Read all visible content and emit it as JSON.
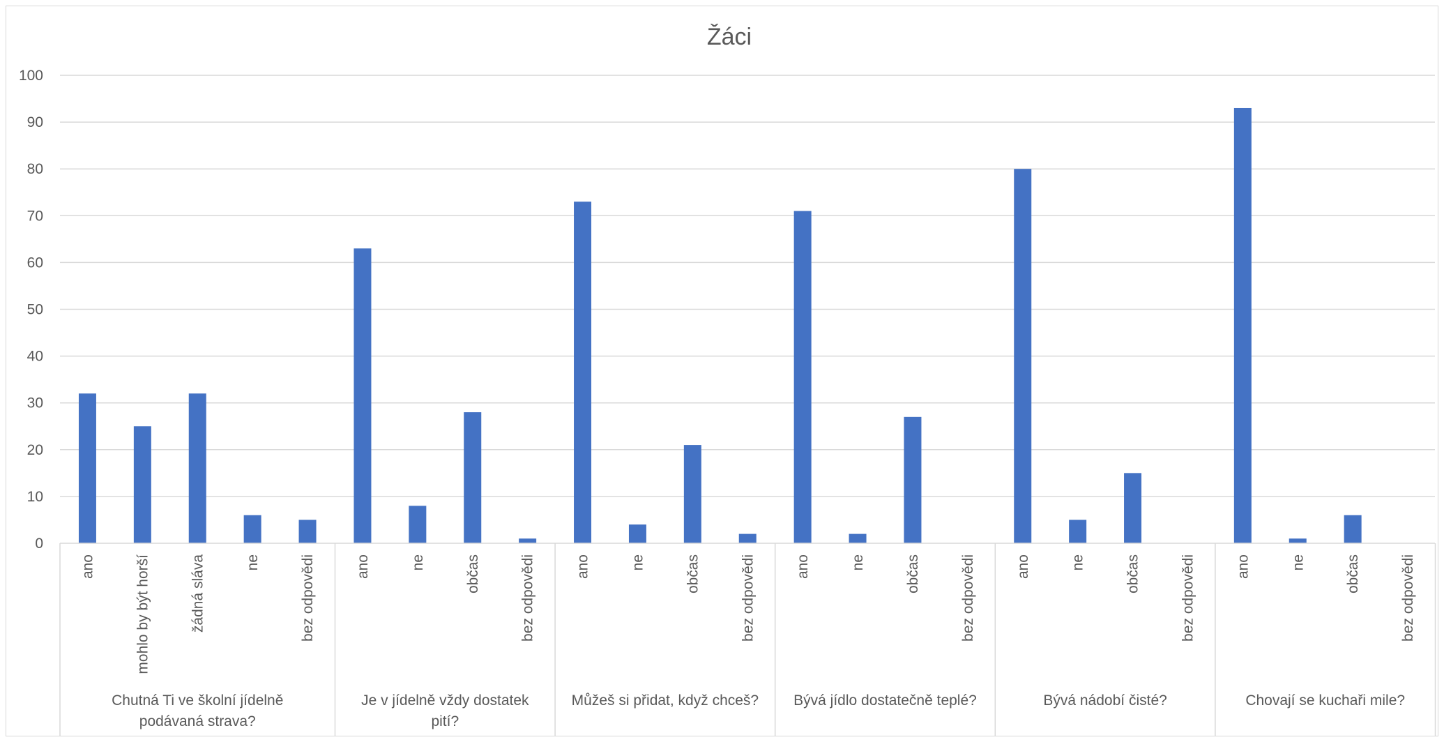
{
  "chart_data": {
    "type": "bar",
    "title": "Žáci",
    "ylim": [
      0,
      100
    ],
    "yticks": [
      0,
      10,
      20,
      30,
      40,
      50,
      60,
      70,
      80,
      90,
      100
    ],
    "grid": true,
    "bar_color": "#4472c4",
    "groups": [
      {
        "label": "Chutná Ti ve školní jídelně podávaná strava?",
        "categories": [
          "ano",
          "mohlo by být horší",
          "žádná sláva",
          "ne",
          "bez odpovědi"
        ],
        "values": [
          32,
          25,
          32,
          6,
          5
        ]
      },
      {
        "label": "Je v jídelně vždy dostatek pití?",
        "categories": [
          "ano",
          "ne",
          "občas",
          "bez odpovědi"
        ],
        "values": [
          63,
          8,
          28,
          1
        ]
      },
      {
        "label": "Můžeš si přidat, když chceš?",
        "categories": [
          "ano",
          "ne",
          "občas",
          "bez odpovědi"
        ],
        "values": [
          73,
          4,
          21,
          2
        ]
      },
      {
        "label": "Bývá jídlo dostatečně teplé?",
        "categories": [
          "ano",
          "ne",
          "občas",
          "bez odpovědi"
        ],
        "values": [
          71,
          2,
          27,
          0
        ]
      },
      {
        "label": "Bývá nádobí čisté?",
        "categories": [
          "ano",
          "ne",
          "občas",
          "bez odpovědi"
        ],
        "values": [
          80,
          5,
          15,
          0
        ]
      },
      {
        "label": "Chovají se kuchaři mile?",
        "categories": [
          "ano",
          "ne",
          "občas",
          "bez odpovědi"
        ],
        "values": [
          93,
          1,
          6,
          0
        ]
      }
    ]
  }
}
